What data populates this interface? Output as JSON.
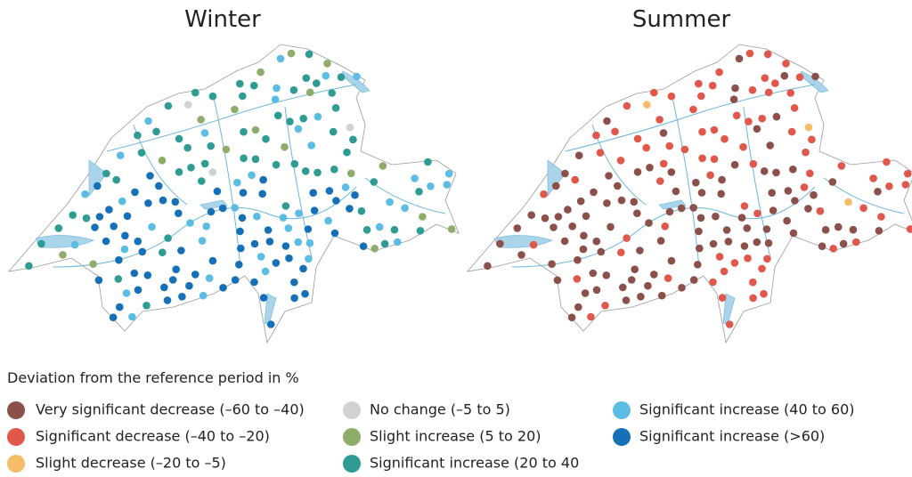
{
  "maps": [
    {
      "title": "Winter"
    },
    {
      "title": "Summer"
    }
  ],
  "legend": {
    "title": "Deviation from the reference period in %",
    "items": [
      {
        "label": "Very significant decrease (–60 to –40)",
        "color": "#8b5049"
      },
      {
        "label": "Significant decrease (–40 to –20)",
        "color": "#e0574b"
      },
      {
        "label": "Slight decrease (–20 to –5)",
        "color": "#f5bd6a"
      },
      {
        "label": "No change (–5 to 5)",
        "color": "#d0d2d4"
      },
      {
        "label": "Slight increase (5 to 20)",
        "color": "#8fad6a"
      },
      {
        "label": "Significant increase (20 to 40",
        "color": "#2e9c93"
      },
      {
        "label": "Significant increase (40 to 60)",
        "color": "#5bbde4"
      },
      {
        "label": "Significant increase (>60)",
        "color": "#1670b8"
      }
    ]
  }
}
